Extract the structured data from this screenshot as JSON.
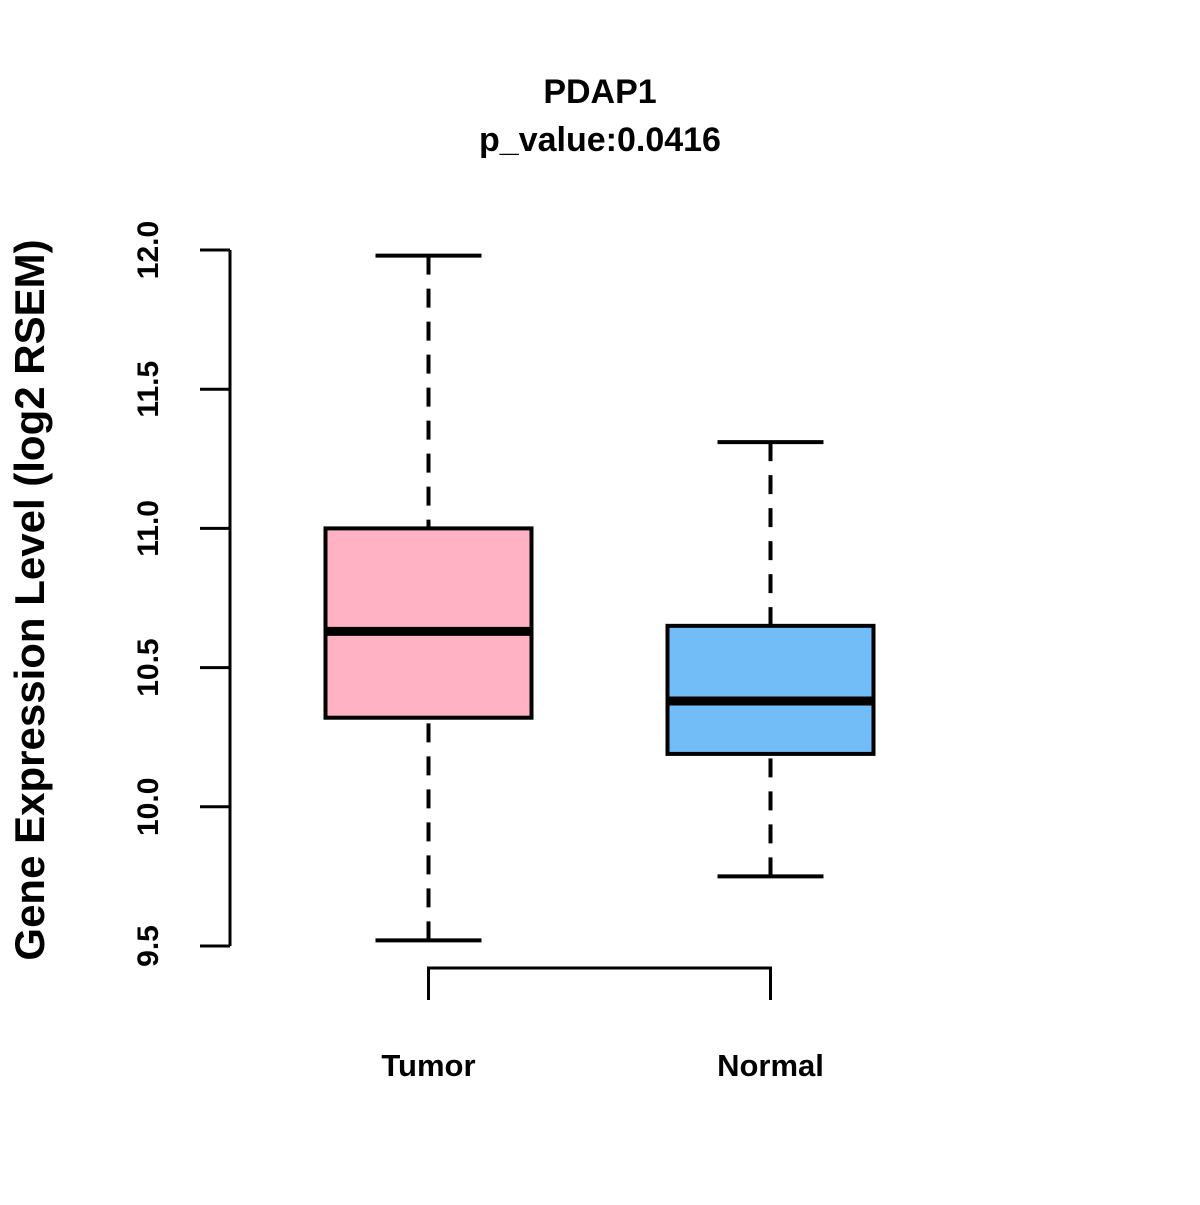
{
  "title": "PDAP1",
  "subtitle": "p_value:0.0416",
  "chart_data": {
    "type": "boxplot",
    "title": "PDAP1",
    "subtitle": "p_value:0.0416",
    "gene": "PDAP1",
    "p_value": 0.0416,
    "xlabel": "",
    "ylabel": "Gene Expression Level (log2 RSEM)",
    "ylim": [
      9.5,
      12.0
    ],
    "yticks": [
      "9.5",
      "10.0",
      "10.5",
      "11.0",
      "11.5",
      "12.0"
    ],
    "grid": false,
    "legend": "none",
    "categories": [
      "Tumor",
      "Normal"
    ],
    "groups": [
      {
        "label": "Tumor",
        "box_color": "#FFB2C3",
        "whisker_low": 9.52,
        "q1": 10.32,
        "median": 10.63,
        "q3": 11.0,
        "whisker_high": 11.98
      },
      {
        "label": "Normal",
        "box_color": "#72BCF8",
        "whisker_low": 9.75,
        "q1": 10.19,
        "median": 10.38,
        "q3": 10.65,
        "whisker_high": 11.31
      }
    ],
    "colors": {
      "stroke": "#000000",
      "background": "#ffffff",
      "tumor_fill": "#FFB2C3",
      "normal_fill": "#72BCF8"
    }
  }
}
